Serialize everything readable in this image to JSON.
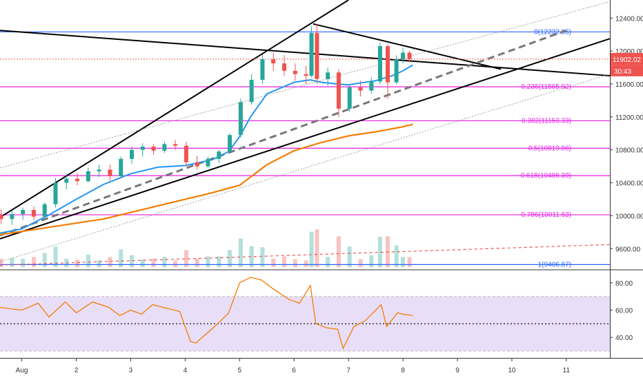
{
  "chart_data": [
    {
      "type": "candlestick",
      "title": "",
      "price_axis": {
        "ticks": [
          "12400.00",
          "12000.00",
          "11600.00",
          "11200.00",
          "10800.00",
          "10400.00",
          "10000.00",
          "9600.00"
        ],
        "ylim": [
          9360,
          12620
        ],
        "last_price": "11902.02",
        "countdown": "30:43"
      },
      "time_axis": {
        "labels": [
          "Aug",
          "2",
          "3",
          "4",
          "5",
          "6",
          "7",
          "8",
          "9",
          "10",
          "11"
        ],
        "day_range": [
          0.6,
          11.8
        ]
      },
      "candles": [
        {
          "t": 0.62,
          "o": 10010,
          "h": 10080,
          "l": 9900,
          "c": 9960
        },
        {
          "t": 0.82,
          "o": 9960,
          "h": 10060,
          "l": 9890,
          "c": 10020
        },
        {
          "t": 1.02,
          "o": 10020,
          "h": 10100,
          "l": 9950,
          "c": 10070
        },
        {
          "t": 1.22,
          "o": 10070,
          "h": 10110,
          "l": 9940,
          "c": 9990
        },
        {
          "t": 1.42,
          "o": 9990,
          "h": 10160,
          "l": 9980,
          "c": 10140
        },
        {
          "t": 1.62,
          "o": 10140,
          "h": 10460,
          "l": 10100,
          "c": 10400
        },
        {
          "t": 1.82,
          "o": 10400,
          "h": 10510,
          "l": 10320,
          "c": 10450
        },
        {
          "t": 2.02,
          "o": 10450,
          "h": 10520,
          "l": 10370,
          "c": 10420
        },
        {
          "t": 2.22,
          "o": 10420,
          "h": 10580,
          "l": 10400,
          "c": 10540
        },
        {
          "t": 2.42,
          "o": 10540,
          "h": 10620,
          "l": 10470,
          "c": 10560
        },
        {
          "t": 2.62,
          "o": 10560,
          "h": 10620,
          "l": 10420,
          "c": 10480
        },
        {
          "t": 2.82,
          "o": 10480,
          "h": 10720,
          "l": 10460,
          "c": 10690
        },
        {
          "t": 3.02,
          "o": 10690,
          "h": 10840,
          "l": 10630,
          "c": 10800
        },
        {
          "t": 3.22,
          "o": 10800,
          "h": 10880,
          "l": 10720,
          "c": 10840
        },
        {
          "t": 3.42,
          "o": 10840,
          "h": 10870,
          "l": 10740,
          "c": 10790
        },
        {
          "t": 3.62,
          "o": 10790,
          "h": 10900,
          "l": 10760,
          "c": 10870
        },
        {
          "t": 3.82,
          "o": 10870,
          "h": 10920,
          "l": 10800,
          "c": 10850
        },
        {
          "t": 4.02,
          "o": 10850,
          "h": 10900,
          "l": 10600,
          "c": 10650
        },
        {
          "t": 4.22,
          "o": 10650,
          "h": 10730,
          "l": 10560,
          "c": 10600
        },
        {
          "t": 4.42,
          "o": 10600,
          "h": 10720,
          "l": 10580,
          "c": 10690
        },
        {
          "t": 4.62,
          "o": 10690,
          "h": 10800,
          "l": 10640,
          "c": 10780
        },
        {
          "t": 4.82,
          "o": 10780,
          "h": 11000,
          "l": 10760,
          "c": 10980
        },
        {
          "t": 5.02,
          "o": 10980,
          "h": 11420,
          "l": 10950,
          "c": 11380
        },
        {
          "t": 5.22,
          "o": 11380,
          "h": 11720,
          "l": 11350,
          "c": 11650
        },
        {
          "t": 5.42,
          "o": 11650,
          "h": 11960,
          "l": 11600,
          "c": 11900
        },
        {
          "t": 5.62,
          "o": 11900,
          "h": 11980,
          "l": 11760,
          "c": 11850
        },
        {
          "t": 5.82,
          "o": 11850,
          "h": 11950,
          "l": 11700,
          "c": 11760
        },
        {
          "t": 6.02,
          "o": 11760,
          "h": 11850,
          "l": 11640,
          "c": 11720
        },
        {
          "t": 6.22,
          "o": 11720,
          "h": 11820,
          "l": 11600,
          "c": 11700
        },
        {
          "t": 6.32,
          "o": 11700,
          "h": 12300,
          "l": 11680,
          "c": 12220
        },
        {
          "t": 6.42,
          "o": 12220,
          "h": 12330,
          "l": 11600,
          "c": 11660
        },
        {
          "t": 6.62,
          "o": 11660,
          "h": 11800,
          "l": 11580,
          "c": 11740
        },
        {
          "t": 6.82,
          "o": 11740,
          "h": 11780,
          "l": 11200,
          "c": 11300
        },
        {
          "t": 7.02,
          "o": 11300,
          "h": 11600,
          "l": 11260,
          "c": 11560
        },
        {
          "t": 7.22,
          "o": 11560,
          "h": 11640,
          "l": 11450,
          "c": 11520
        },
        {
          "t": 7.42,
          "o": 11520,
          "h": 11680,
          "l": 11480,
          "c": 11630
        },
        {
          "t": 7.58,
          "o": 11630,
          "h": 12100,
          "l": 11600,
          "c": 12060
        },
        {
          "t": 7.72,
          "o": 12060,
          "h": 12080,
          "l": 11420,
          "c": 11620
        },
        {
          "t": 7.88,
          "o": 11620,
          "h": 11950,
          "l": 11600,
          "c": 11900
        },
        {
          "t": 8.0,
          "o": 11900,
          "h": 12040,
          "l": 11850,
          "c": 11980
        },
        {
          "t": 8.12,
          "o": 11980,
          "h": 12000,
          "l": 11860,
          "c": 11902
        }
      ],
      "ema_blue": [
        [
          0.6,
          9790
        ],
        [
          1.0,
          9840
        ],
        [
          1.5,
          10010
        ],
        [
          2.0,
          10200
        ],
        [
          2.5,
          10380
        ],
        [
          3.0,
          10510
        ],
        [
          3.5,
          10590
        ],
        [
          4.0,
          10610
        ],
        [
          4.5,
          10680
        ],
        [
          4.8,
          10780
        ],
        [
          5.0,
          10960
        ],
        [
          5.2,
          11200
        ],
        [
          5.5,
          11480
        ],
        [
          6.0,
          11620
        ],
        [
          6.3,
          11650
        ],
        [
          6.5,
          11620
        ],
        [
          6.8,
          11600
        ],
        [
          7.0,
          11590
        ],
        [
          7.5,
          11640
        ],
        [
          7.8,
          11700
        ],
        [
          8.0,
          11760
        ],
        [
          8.18,
          11830
        ]
      ],
      "sma_orange": [
        [
          0.6,
          9770
        ],
        [
          1.5,
          9860
        ],
        [
          2.5,
          9960
        ],
        [
          3.5,
          10120
        ],
        [
          4.5,
          10280
        ],
        [
          5.0,
          10370
        ],
        [
          5.5,
          10620
        ],
        [
          6.0,
          10790
        ],
        [
          6.5,
          10890
        ],
        [
          7.0,
          10970
        ],
        [
          7.5,
          11020
        ],
        [
          8.0,
          11080
        ],
        [
          8.18,
          11110
        ]
      ],
      "fib_levels": [
        {
          "label": "0(12232.86)",
          "value": 12232.86,
          "color": "#2962ff"
        },
        {
          "label": "0.236(11565.92)",
          "value": 11565.92,
          "color": "#e91ee9"
        },
        {
          "label": "0.382(11153.33)",
          "value": 11153.33,
          "color": "#e91ee9"
        },
        {
          "label": "0.5(10819.86)",
          "value": 10819.86,
          "color": "#e91ee9"
        },
        {
          "label": "0.618(10486.39)",
          "value": 10486.39,
          "color": "#e91ee9"
        },
        {
          "label": "0.786(10011.63)",
          "value": 10011.63,
          "color": "#e91ee9"
        },
        {
          "label": "1(9406.87)",
          "value": 9406.87,
          "color": "#2962ff"
        }
      ],
      "colors": {
        "up": "#26a69a",
        "down": "#ef5350",
        "ema": "#2196f3",
        "sma": "#f57c00",
        "fib": "#e91ee9",
        "fib_edge": "#2962ff",
        "price_line": "#ef5350"
      }
    },
    {
      "type": "line",
      "title": "",
      "axis_ticks": [
        "80.00",
        "60.00",
        "40.00"
      ],
      "ylim": [
        25,
        88
      ],
      "band": [
        30,
        70
      ],
      "midline": 50,
      "rsi": [
        [
          0.6,
          62
        ],
        [
          1.0,
          60
        ],
        [
          1.3,
          65
        ],
        [
          1.5,
          55
        ],
        [
          1.8,
          66
        ],
        [
          2.0,
          58
        ],
        [
          2.3,
          66
        ],
        [
          2.6,
          62
        ],
        [
          2.8,
          56
        ],
        [
          3.0,
          60
        ],
        [
          3.2,
          57
        ],
        [
          3.4,
          64
        ],
        [
          3.6,
          62
        ],
        [
          3.9,
          59
        ],
        [
          4.1,
          37
        ],
        [
          4.2,
          36
        ],
        [
          4.4,
          43
        ],
        [
          4.6,
          50
        ],
        [
          4.8,
          58
        ],
        [
          5.0,
          80
        ],
        [
          5.2,
          84
        ],
        [
          5.4,
          82
        ],
        [
          5.6,
          76
        ],
        [
          5.9,
          68
        ],
        [
          6.1,
          65
        ],
        [
          6.3,
          78
        ],
        [
          6.4,
          50
        ],
        [
          6.6,
          47
        ],
        [
          6.8,
          46
        ],
        [
          6.9,
          32
        ],
        [
          7.1,
          48
        ],
        [
          7.3,
          52
        ],
        [
          7.5,
          60
        ],
        [
          7.6,
          64
        ],
        [
          7.7,
          48
        ],
        [
          7.9,
          58
        ],
        [
          8.0,
          57
        ],
        [
          8.18,
          56
        ]
      ],
      "colors": {
        "line": "#f57c00",
        "band": "#e8def8",
        "band_edge": "#bdbdbd",
        "midline": "#333333"
      }
    }
  ]
}
